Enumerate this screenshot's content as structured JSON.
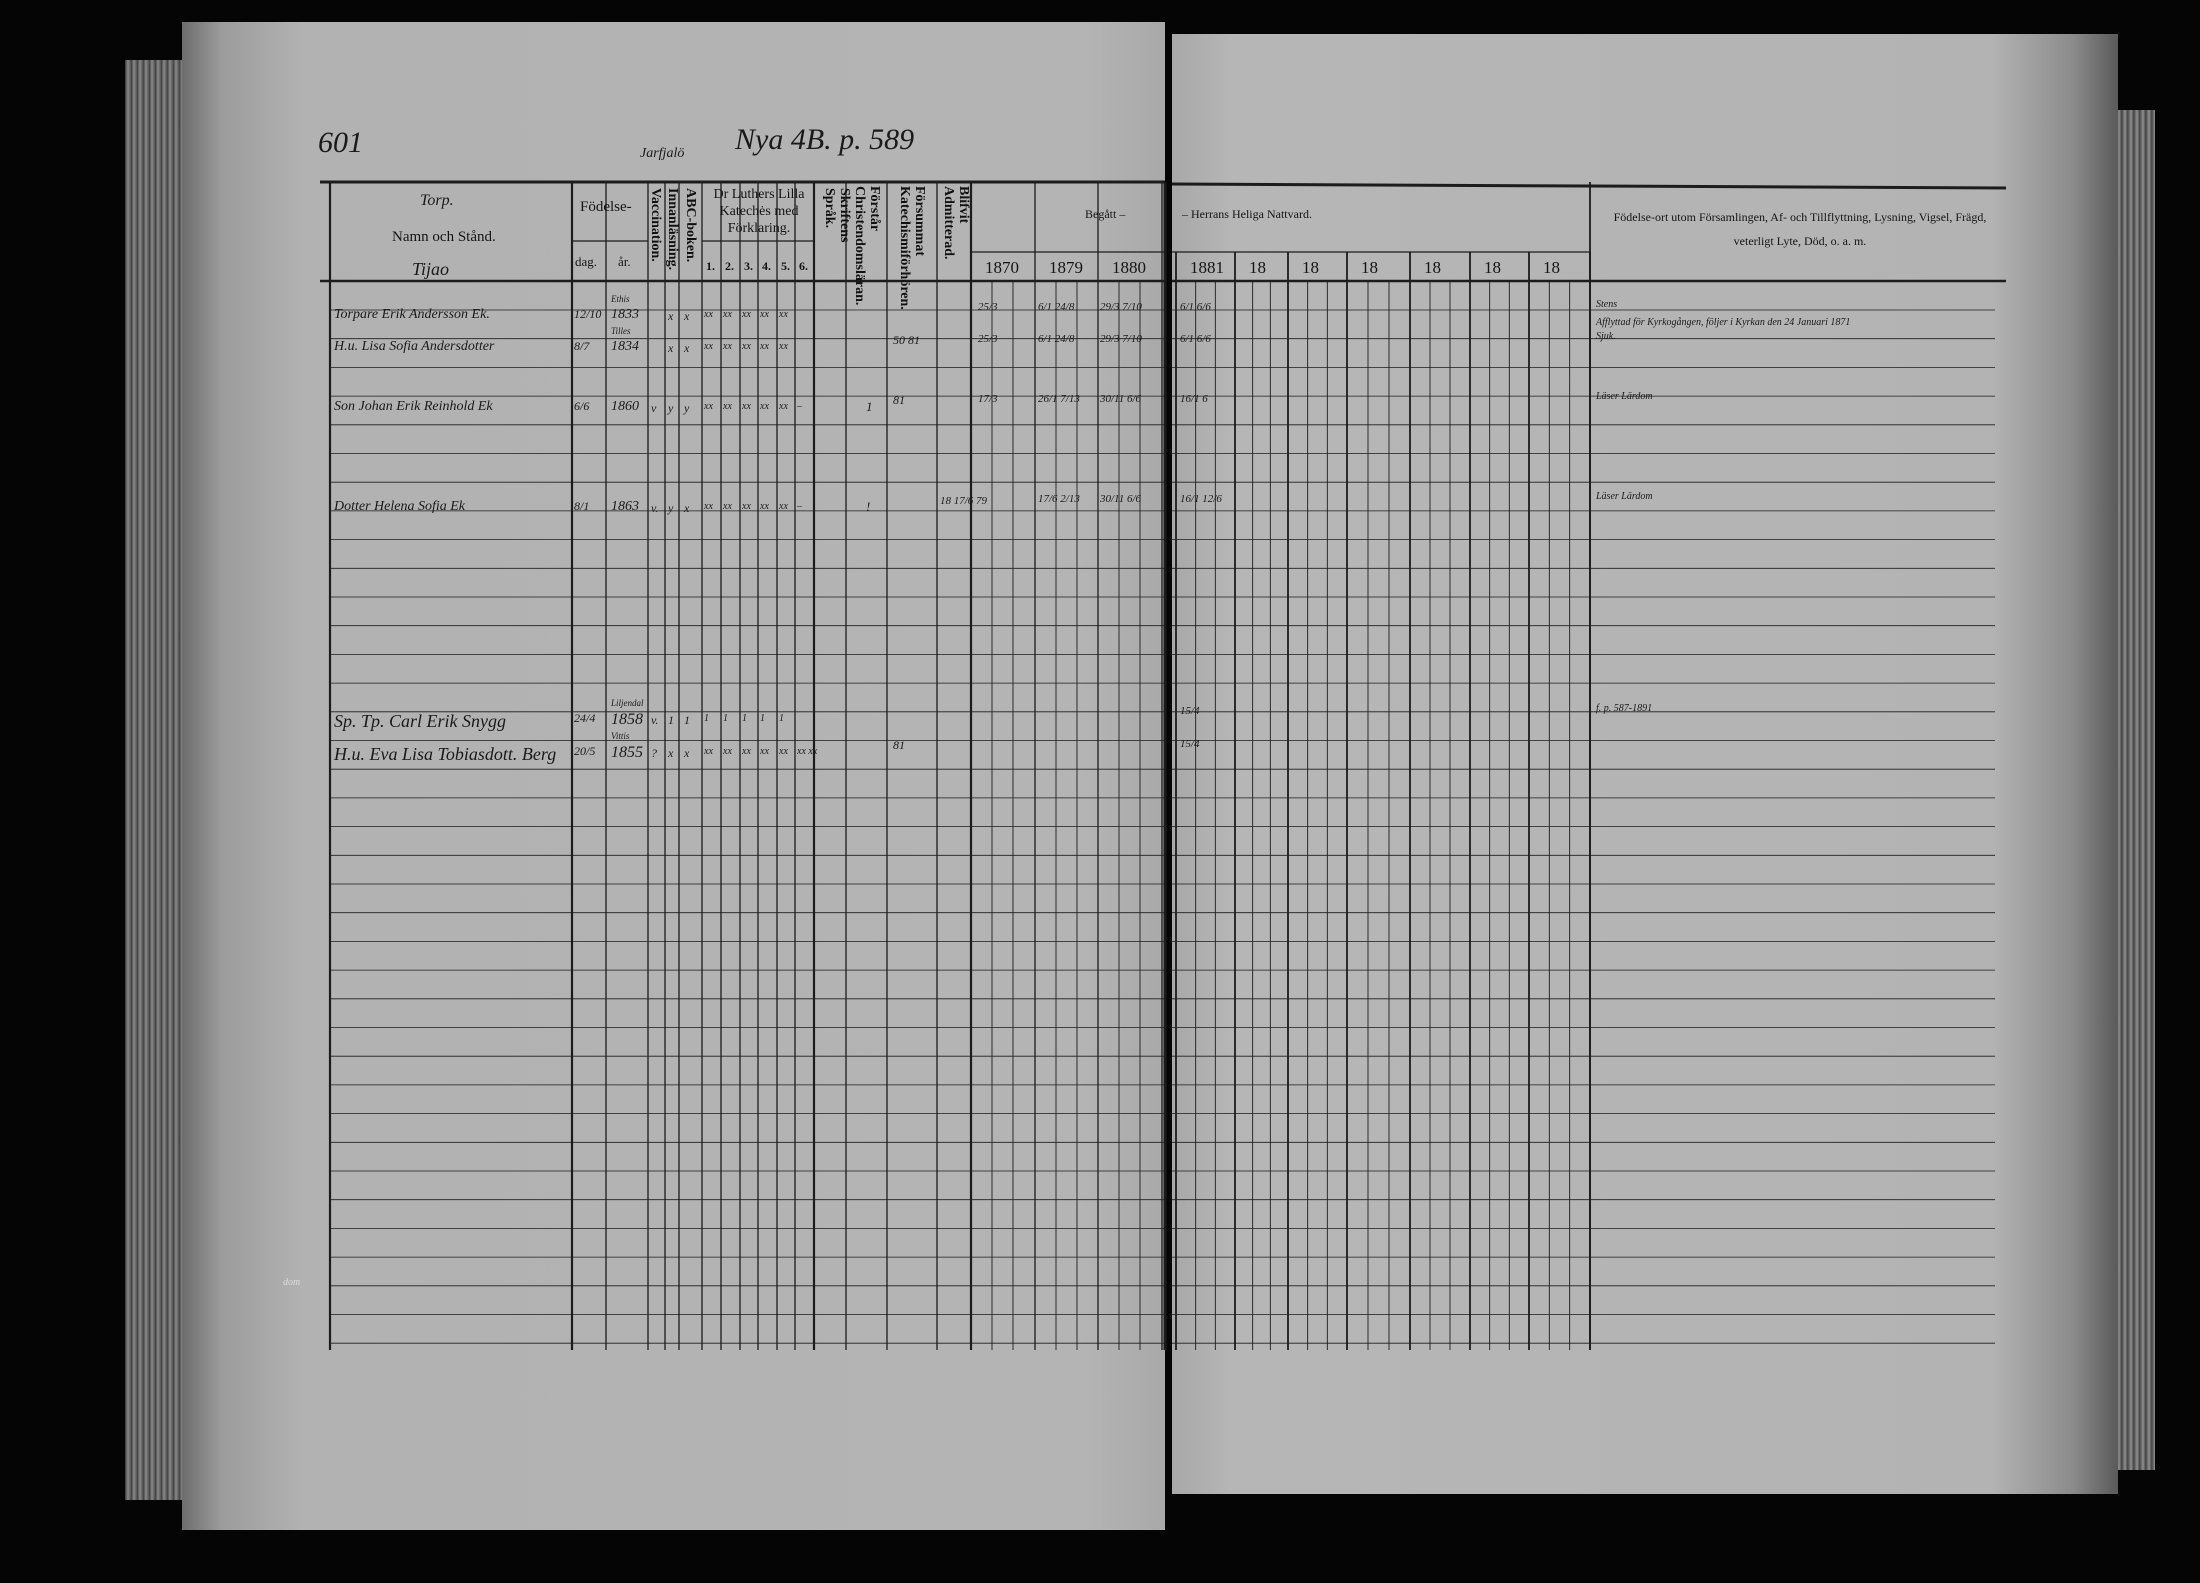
{
  "header": {
    "page_number": "601",
    "place": "Jarfjalö",
    "reference": "Nya 4B. p. 589",
    "section": "Torp.",
    "name_column": "Namn och Stånd.",
    "subplace": "Tijao",
    "birth": "Födelse-",
    "birth_day": "dag.",
    "birth_year": "år.",
    "vaccination": "Vaccination.",
    "reading": "Innanläsning.",
    "abc": "ABC-boken.",
    "catechism": "Dr Luthers Lilla Katechės med Förklaring.",
    "catechism_parts": [
      "1.",
      "2.",
      "3.",
      "4.",
      "5.",
      "6."
    ],
    "scripture": "Skriftens Språk.",
    "christianity": "Förstår Christendomsläran.",
    "missed": "Försummat Katechismiförhören.",
    "admitted": "Blifvit Admitterad.",
    "communion_left": "Begått  –",
    "communion_right": "–  Herrans Heliga Nattvard.",
    "years": [
      "1870",
      "1879",
      "1880",
      "1881",
      "18",
      "18",
      "18",
      "18",
      "18",
      "18"
    ],
    "remarks": "Födelse-ort utom Församlingen, Af- och Tillflyttning, Lysning, Vigsel, Frägd, veterligt Lyte, Död, o. a. m."
  },
  "rows": [
    {
      "name": "Torpare Erik Andersson Ek.",
      "day": "12/10",
      "birthplace": "Ethis",
      "year": "1833",
      "vacc": "",
      "inn": "x",
      "abc": "x",
      "cat": [
        "xx",
        "xx",
        "xx",
        "xx",
        "xx",
        ""
      ],
      "skrift": "",
      "forstar": "",
      "forsummat": "",
      "blifvit": "",
      "y1870": "25/3",
      "y1879": "6/1  24/8",
      "y1880": "29/3  7/10",
      "y1881": "6/1  6/6",
      "remark": "Stens",
      "remark2": "Afflyttad för Kyrkogången, följer i Kyrkan den 24 Januari 1871"
    },
    {
      "name": "H.u. Lisa Sofia Andersdotter",
      "day": "8/7",
      "birthplace": "Tilles",
      "year": "1834",
      "vacc": "",
      "inn": "x",
      "abc": "x",
      "cat": [
        "xx",
        "xx",
        "xx",
        "xx",
        "xx",
        ""
      ],
      "skrift": "",
      "forstar": "",
      "forsummat": "50 81",
      "blifvit": "",
      "y1870": "25/3",
      "y1879": "6/1  24/8",
      "y1880": "29/3  7/10",
      "y1881": "6/1  6/6",
      "remark": "Sjuk.",
      "remark2": ""
    },
    {
      "name": "Son Johan Erik Reinhold Ek",
      "day": "6/6",
      "birthplace": "",
      "year": "1860",
      "vacc": "v",
      "inn": "y",
      "abc": "y",
      "cat": [
        "xx",
        "xx",
        "xx",
        "xx",
        "xx",
        "–"
      ],
      "skrift": "",
      "forstar": "1",
      "forsummat": "81",
      "blifvit": "",
      "y1870": "17/3",
      "y1879": "26/1  7/13",
      "y1880": "30/11  6/6",
      "y1881": "16/1  6",
      "remark": "Läser Lärdom",
      "remark2": ""
    },
    {
      "name": "Dotter Helena Sofia Ek",
      "day": "8/1",
      "birthplace": "",
      "year": "1863",
      "vacc": "v.",
      "inn": "y",
      "abc": "x",
      "cat": [
        "xx",
        "xx",
        "xx",
        "xx",
        "xx",
        "–"
      ],
      "skrift": "",
      "forstar": "!",
      "forsummat": "",
      "blifvit": "18 17/6 79",
      "y1870": "",
      "y1879": "17/6  2/13",
      "y1880": "30/11  6/6",
      "y1881": "16/1  12/6",
      "remark": "Läser Lärdom",
      "remark2": ""
    },
    {
      "name": "Sp. Tp. Carl Erik Snygg",
      "day": "24/4",
      "birthplace": "Liljendal",
      "year": "1858",
      "vacc": "v.",
      "inn": "1",
      "abc": "1",
      "cat": [
        "1",
        "1",
        "1",
        "1",
        "1",
        ""
      ],
      "skrift": "",
      "forstar": "",
      "forsummat": "",
      "blifvit": "",
      "y1870": "",
      "y1879": "",
      "y1880": "",
      "y1881": "15/4",
      "remark": "f. p. 587-1891",
      "remark2": ""
    },
    {
      "name": "H.u. Eva Lisa Tobiasdott. Berg",
      "day": "20/5",
      "birthplace": "Vittis",
      "year": "1855",
      "vacc": "?",
      "inn": "x",
      "abc": "x",
      "cat": [
        "xx",
        "xx",
        "xx",
        "xx",
        "xx",
        "xx xx"
      ],
      "skrift": "",
      "forstar": "",
      "forsummat": "81",
      "blifvit": "",
      "y1870": "",
      "y1879": "",
      "y1880": "",
      "y1881": "15/4",
      "remark": "",
      "remark2": ""
    }
  ],
  "margin_note": "dom"
}
